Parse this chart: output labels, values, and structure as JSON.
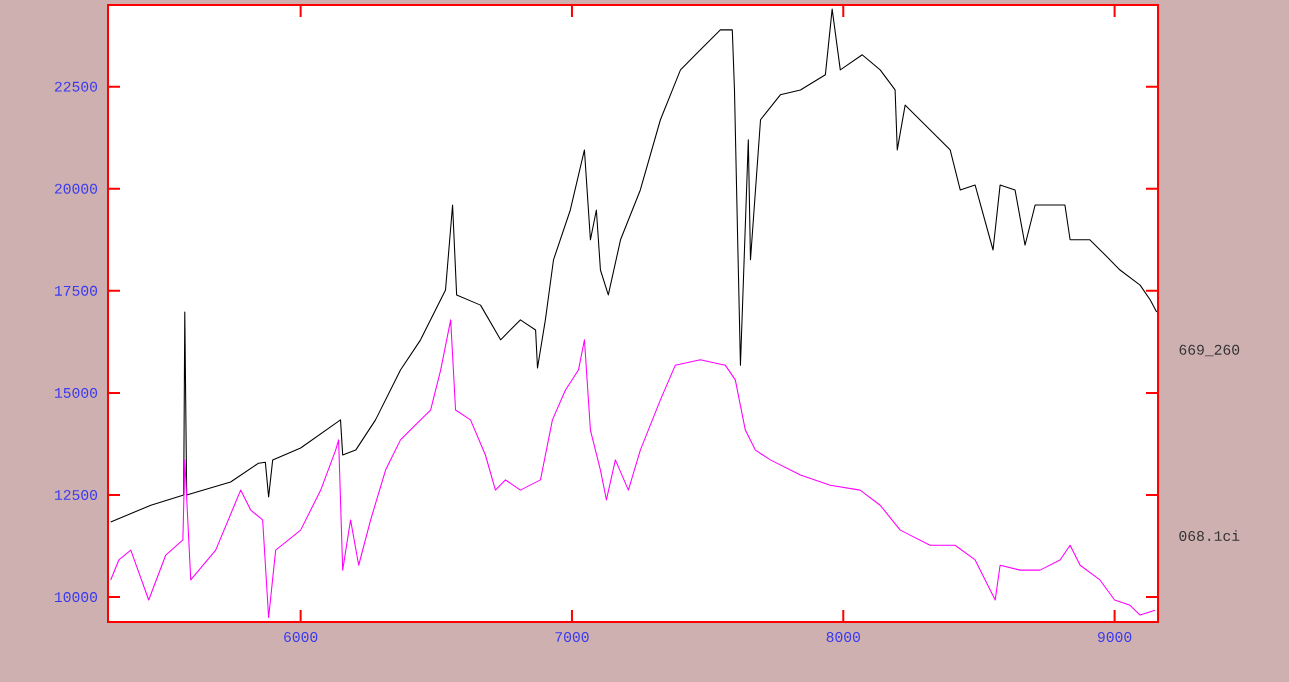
{
  "chart_data": {
    "type": "line",
    "xlim": [
      5290,
      9160
    ],
    "ylim": [
      9390,
      24500
    ],
    "xticks": [
      6000,
      7000,
      8000,
      9000
    ],
    "yticks": [
      10000,
      12500,
      15000,
      17500,
      20000,
      22500
    ],
    "legend": false,
    "grid": false,
    "marker": "none",
    "line_style": "solid",
    "series": [
      {
        "name": "669_260",
        "color": "#000000",
        "x": [
          5300,
          5448,
          5569,
          5573,
          5580,
          5742,
          5845,
          5870,
          5882,
          5897,
          6000,
          6147,
          6155,
          6203,
          6276,
          6368,
          6442,
          6534,
          6560,
          6575,
          6663,
          6737,
          6810,
          6866,
          6873,
          6902,
          6932,
          6994,
          7046,
          7068,
          7090,
          7105,
          7134,
          7179,
          7252,
          7326,
          7400,
          7473,
          7547,
          7591,
          7599,
          7610,
          7621,
          7632,
          7650,
          7658,
          7695,
          7768,
          7842,
          7934,
          7959,
          7989,
          8070,
          8136,
          8191,
          8199,
          8228,
          8320,
          8394,
          8431,
          8486,
          8552,
          8578,
          8633,
          8670,
          8707,
          8817,
          8836,
          8909,
          8965,
          9020,
          9094,
          9131,
          9155
        ],
        "values": [
          11840,
          12250,
          12500,
          16980,
          12500,
          12820,
          13280,
          13300,
          12450,
          13360,
          13650,
          14340,
          13480,
          13600,
          14340,
          15560,
          16300,
          17520,
          19600,
          17400,
          17150,
          16300,
          16790,
          16540,
          15610,
          16790,
          18260,
          19480,
          20950,
          18750,
          19480,
          18010,
          17400,
          18750,
          19970,
          21690,
          22910,
          23400,
          23890,
          23890,
          22420,
          18990,
          15680,
          17770,
          21200,
          18260,
          21690,
          22300,
          22420,
          22790,
          24400,
          22910,
          23280,
          22910,
          22420,
          20950,
          22050,
          21440,
          20950,
          19970,
          20090,
          18500,
          20090,
          19970,
          18620,
          19600,
          19600,
          18750,
          18750,
          18380,
          18010,
          17640,
          17280,
          16980
        ]
      },
      {
        "name": "068.1ci",
        "color": "#ff00ff",
        "x": [
          5300,
          5330,
          5374,
          5440,
          5503,
          5566,
          5573,
          5595,
          5687,
          5779,
          5816,
          5860,
          5882,
          5908,
          6000,
          6074,
          6129,
          6140,
          6155,
          6184,
          6214,
          6258,
          6313,
          6368,
          6442,
          6479,
          6516,
          6553,
          6571,
          6626,
          6681,
          6718,
          6755,
          6810,
          6884,
          6928,
          6976,
          7024,
          7046,
          7068,
          7105,
          7127,
          7160,
          7208,
          7252,
          7326,
          7381,
          7473,
          7565,
          7602,
          7639,
          7676,
          7731,
          7842,
          7952,
          8062,
          8136,
          8210,
          8320,
          8412,
          8486,
          8560,
          8578,
          8652,
          8725,
          8799,
          8836,
          8873,
          8946,
          9000,
          9057,
          9094,
          9149
        ],
        "values": [
          10420,
          10910,
          11150,
          9930,
          11030,
          11400,
          13360,
          10420,
          11150,
          12620,
          12130,
          11890,
          9500,
          11150,
          11640,
          12620,
          13600,
          13850,
          10660,
          11890,
          10780,
          11890,
          13110,
          13850,
          14340,
          14580,
          15560,
          16790,
          14580,
          14340,
          13480,
          12620,
          12870,
          12620,
          12870,
          14340,
          15070,
          15560,
          16300,
          14090,
          13110,
          12380,
          13360,
          12620,
          13600,
          14830,
          15680,
          15810,
          15680,
          15320,
          14090,
          13600,
          13360,
          12990,
          12740,
          12620,
          12250,
          11640,
          11270,
          11270,
          10910,
          9930,
          10780,
          10660,
          10660,
          10910,
          11270,
          10780,
          10420,
          9930,
          9800,
          9560,
          9680
        ]
      }
    ]
  }
}
